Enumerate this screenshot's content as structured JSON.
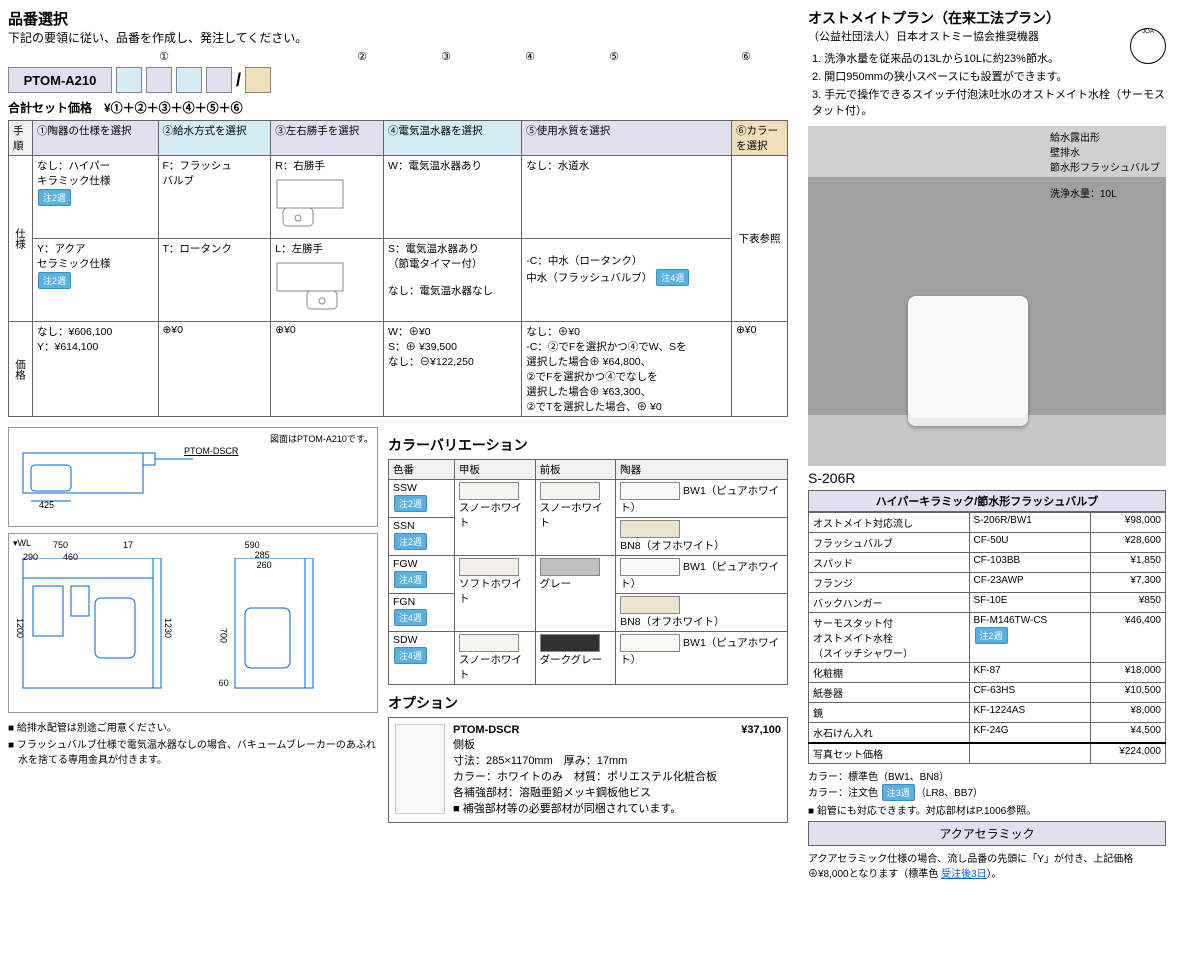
{
  "header": {
    "title": "品番選択",
    "instruction": "下記の要領に従い、品番を作成し、発注してください。",
    "total_label": "合計セット価格　¥①＋②＋③＋④＋⑤＋⑥"
  },
  "partname": {
    "base": "PTOM-A210",
    "slash": "/",
    "circled": [
      "①",
      "②",
      "③",
      "④",
      "⑤",
      "⑥"
    ]
  },
  "spec_table": {
    "col_step": "手順",
    "cols": [
      "①陶器の仕様を選択",
      "②給水方式を選択",
      "③左右勝手を選択",
      "④電気温水器を選択",
      "⑤使用水質を選択",
      "⑥カラーを選択"
    ],
    "row_spec_label": "仕様",
    "row_price_label": "価格",
    "c1a_l1": "なし：ハイパー",
    "c1a_l2": "キラミック仕様",
    "c1a_badge": "注2週",
    "c1b_l1": "Y：アクア",
    "c1b_l2": "セラミック仕様",
    "c1b_badge": "注2週",
    "c2a": "F：フラッシュ",
    "c2a2": "バルブ",
    "c2b": "T：ロータンク",
    "c3a": "R：右勝手",
    "c3b": "L：左勝手",
    "c4a": "W：電気温水器あり",
    "c4b": "S：電気温水器あり",
    "c4b2": "（節電タイマー付）",
    "c4c": "なし：電気温水器なし",
    "c5a": "なし：水道水",
    "c5b": "-C：中水（ロータンク）",
    "c5c": "中水（フラッシュバルブ）",
    "c5c_badge": "注4週",
    "c6": "下表参照",
    "p1": "なし：¥606,100",
    "p1b": "Y：¥614,100",
    "p2": "⊕¥0",
    "p3": "⊕¥0",
    "p4a": "W：⊕¥0",
    "p4b": "S：⊕ ¥39,500",
    "p4c": "なし：⊖¥122,250",
    "p5a": "なし：⊕¥0",
    "p5b": "-C：②でFを選択かつ④でW、Sを",
    "p5c": "選択した場合⊕ ¥64,800、",
    "p5d": "②でFを選択かつ④でなしを",
    "p5e": "選択した場合⊕ ¥63,300、",
    "p5f": "②でTを選択した場合、⊕ ¥0",
    "p6": "⊕¥0"
  },
  "drawing": {
    "caption": "図面はPTOM-A210です。",
    "label": "PTOM-DSCR",
    "dim_425": "425",
    "dim_750": "750",
    "dim_460": "460",
    "dim_290": "290",
    "dim_17": "17",
    "dim_1200": "1200",
    "dim_1230": "1230",
    "dim_700": "700",
    "dim_60": "60",
    "dim_590": "590",
    "dim_285": "285",
    "dim_260": "260",
    "wl": "▾WL",
    "note1": "■ 給排水配管は別途ご用意ください。",
    "note2": "■ フラッシュバルブ仕様で電気温水器なしの場合、バキュームブレーカーのあふれ水を捨てる専用金具が付きます。"
  },
  "colorvar": {
    "title": "カラーバリエーション",
    "cols": [
      "色番",
      "甲板",
      "前板",
      "陶器"
    ],
    "rows": [
      {
        "code": "SSW",
        "badge": "注2週",
        "top": "スノーホワイト",
        "front": "スノーホワイト",
        "pot": "BW1（ピュアホワイト）",
        "tc": "#f5f5f0",
        "fc": "#f5f5f0",
        "pc": "#f8f8f5"
      },
      {
        "code": "SSN",
        "badge": "注2週",
        "top": "",
        "front": "",
        "pot": "BN8（オフホワイト）",
        "tc": "",
        "fc": "",
        "pc": "#ede4d0"
      },
      {
        "code": "FGW",
        "badge": "注4週",
        "top": "ソフトホワイト",
        "front": "グレー",
        "pot": "BW1（ピュアホワイト）",
        "tc": "#f0efe8",
        "fc": "#c0c0c0",
        "pc": "#f8f8f5"
      },
      {
        "code": "FGN",
        "badge": "注4週",
        "top": "",
        "front": "",
        "pot": "BN8（オフホワイト）",
        "tc": "",
        "fc": "",
        "pc": "#ede4d0"
      },
      {
        "code": "SDW",
        "badge": "注4週",
        "top": "スノーホワイト",
        "front": "ダークグレー",
        "pot": "BW1（ピュアホワイト）",
        "tc": "#f5f5f0",
        "fc": "#303030",
        "pc": "#f8f8f5"
      }
    ]
  },
  "option": {
    "title": "オプション",
    "name": "PTOM-DSCR",
    "price": "¥37,100",
    "sub": "側板",
    "l1": "寸法：285×1170mm　厚み：17mm",
    "l2": "カラー：ホワイトのみ　材質：ポリエステル化粧合板",
    "l3": "各補強部材：溶融亜鉛メッキ鋼板他ビス",
    "l4": "■ 補強部材等の必要部材が同梱されています。"
  },
  "plan": {
    "title": "オストメイトプラン（在来工法プラン）",
    "sub": "（公益社団法人）日本オストミー協会推奨機器",
    "f1": "1. 洗浄水量を従来品の13Lから10Lに約23%節水。",
    "f2": "2. 開口950mmの狭小スペースにも設置ができます。",
    "f3": "3. 手元で操作できるスイッチ付泡沫吐水のオストメイト水栓（サーモスタット付）。",
    "img_l1": "給水露出形",
    "img_l2": "壁排水",
    "img_l3": "節水形フラッシュバルブ",
    "img_l4": "洗浄水量：10L",
    "code": "S-206R",
    "head": "ハイパーキラミック/節水形フラッシュバルブ",
    "rows": [
      {
        "n": "オストメイト対応流し",
        "m": "S-206R/BW1",
        "p": "¥98,000"
      },
      {
        "n": "フラッシュバルブ",
        "m": "CF-50U",
        "p": "¥28,600"
      },
      {
        "n": "スパッド",
        "m": "CF-103BB",
        "p": "¥1,850"
      },
      {
        "n": "フランジ",
        "m": "CF-23AWP",
        "p": "¥7,300"
      },
      {
        "n": "バックハンガー",
        "m": "SF-10E",
        "p": "¥850"
      },
      {
        "n": "サーモスタット付\nオストメイト水栓\n（スイッチシャワー）",
        "m": "BF-M146TW-CS",
        "badge": "注2週",
        "p": "¥46,400"
      },
      {
        "n": "化粧棚",
        "m": "KF-87",
        "p": "¥18,000"
      },
      {
        "n": "紙巻器",
        "m": "CF-63HS",
        "p": "¥10,500"
      },
      {
        "n": "鏡",
        "m": "KF-1224AS",
        "p": "¥8,000"
      },
      {
        "n": "水石けん入れ",
        "m": "KF-24G",
        "p": "¥4,500"
      }
    ],
    "total_l": "写真セット価格",
    "total_p": "¥224,000",
    "foot1": "カラー：標準色（BW1、BN8）",
    "foot2a": "カラー：注文色",
    "foot2_badge": "注3週",
    "foot2b": "（LR8、BB7）",
    "foot3": "■ 鉛管にも対応できます。対応部材はP.1006参照。",
    "aqua_title": "アクアセラミック",
    "aqua_text": "アクアセラミック仕様の場合、流し品番の先頭に「Y」が付き、上記価格⊕¥8,000となります（標準色 ",
    "aqua_link": "受注後3日",
    "aqua_tail": "）。"
  }
}
